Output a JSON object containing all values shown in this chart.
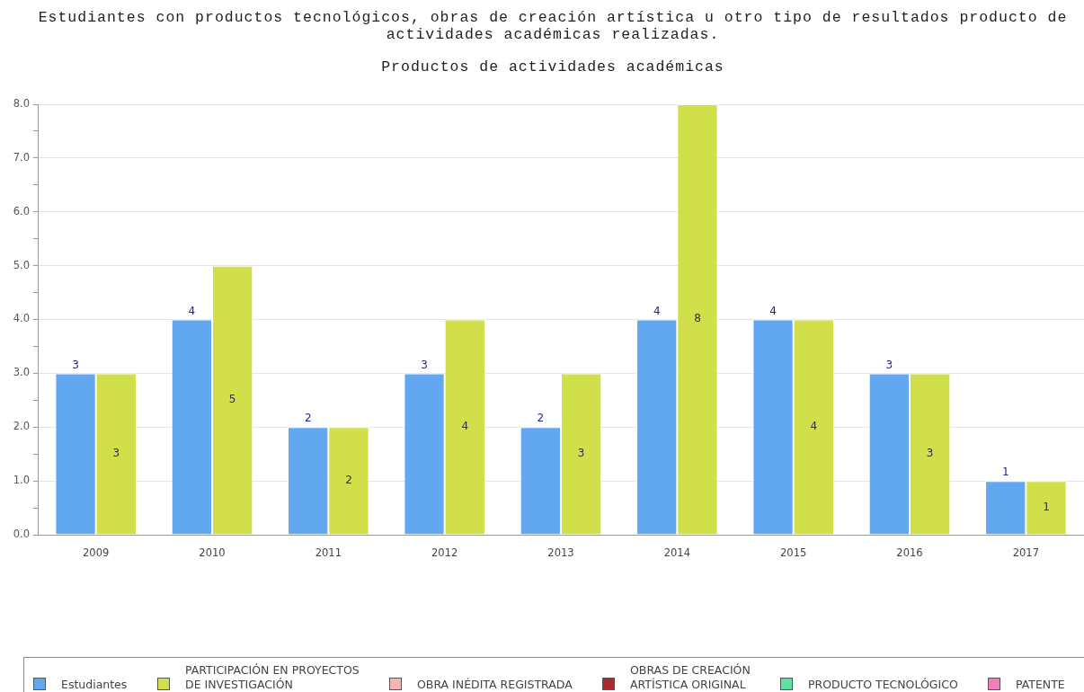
{
  "chart_data": {
    "type": "bar",
    "title": "Estudiantes con productos tecnológicos, obras de creación artística u otro tipo de resultados producto de actividades académicas realizadas.",
    "subtitle": "Productos de actividades académicas",
    "categories": [
      "2009",
      "2010",
      "2011",
      "2012",
      "2013",
      "2014",
      "2015",
      "2016",
      "2017"
    ],
    "series": [
      {
        "name": "Estudiantes",
        "color": "#61a8f1",
        "values": [
          3,
          4,
          2,
          3,
          2,
          4,
          4,
          3,
          1
        ]
      },
      {
        "name": "PARTICIPACIÓN EN PROYECTOS DE INVESTIGACIÓN",
        "color": "#d1df4a",
        "values": [
          3,
          5,
          2,
          4,
          3,
          8,
          4,
          3,
          1
        ]
      },
      {
        "name": "OBRA INÉDITA REGISTRADA",
        "color": "#f4b5b5",
        "values": [
          null,
          null,
          null,
          null,
          null,
          null,
          null,
          null,
          null
        ]
      },
      {
        "name": "OBRAS DE CREACIÓN ARTÍSTICA ORIGINAL",
        "color": "#a82a2a",
        "values": [
          null,
          null,
          null,
          null,
          null,
          null,
          null,
          null,
          null
        ]
      },
      {
        "name": "PRODUCTO TECNOLÓGICO",
        "color": "#5ee0a0",
        "values": [
          null,
          null,
          null,
          null,
          null,
          null,
          null,
          null,
          null
        ]
      },
      {
        "name": "PATENTE",
        "color": "#f07fbe",
        "values": [
          null,
          null,
          null,
          null,
          null,
          null,
          null,
          null,
          null
        ]
      }
    ],
    "ylim": [
      0,
      8
    ],
    "yticks": [
      {
        "value": 0,
        "label": "0.0"
      },
      {
        "value": 0.5,
        "label": null
      },
      {
        "value": 1,
        "label": "1.0"
      },
      {
        "value": 1.5,
        "label": null
      },
      {
        "value": 2,
        "label": "2.0"
      },
      {
        "value": 2.5,
        "label": null
      },
      {
        "value": 3,
        "label": "3.0"
      },
      {
        "value": 3.5,
        "label": null
      },
      {
        "value": 4,
        "label": "4.0"
      },
      {
        "value": 4.5,
        "label": null
      },
      {
        "value": 5,
        "label": "5.0"
      },
      {
        "value": 5.5,
        "label": null
      },
      {
        "value": 6,
        "label": "6.0"
      },
      {
        "value": 6.5,
        "label": null
      },
      {
        "value": 7,
        "label": "7.0"
      },
      {
        "value": 7.5,
        "label": null
      },
      {
        "value": 8,
        "label": "8.0"
      }
    ],
    "grid": "y",
    "legend": "bottom",
    "data_labels": true
  }
}
